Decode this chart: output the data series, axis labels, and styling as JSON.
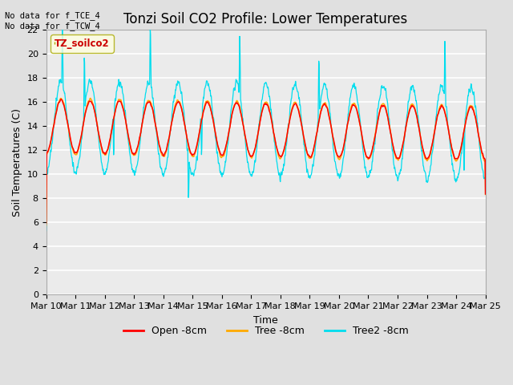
{
  "title": "Tonzi Soil CO2 Profile: Lower Temperatures",
  "xlabel": "Time",
  "ylabel": "Soil Temperatures (C)",
  "annotation": "No data for f_TCE_4\nNo data for f_TCW_4",
  "legend_label": "TZ_soilco2",
  "series_labels": [
    "Open -8cm",
    "Tree -8cm",
    "Tree2 -8cm"
  ],
  "series_colors": [
    "#ff0000",
    "#ffaa00",
    "#00ddee"
  ],
  "ylim": [
    0,
    22
  ],
  "yticks": [
    0,
    2,
    4,
    6,
    8,
    10,
    12,
    14,
    16,
    18,
    20,
    22
  ],
  "xtick_labels": [
    "Mar 10",
    "Mar 11",
    "Mar 12",
    "Mar 13",
    "Mar 14",
    "Mar 15",
    "Mar 16",
    "Mar 17",
    "Mar 18",
    "Mar 19",
    "Mar 20",
    "Mar 21",
    "Mar 22",
    "Mar 23",
    "Mar 24",
    "Mar 25"
  ],
  "background_color": "#e0e0e0",
  "plot_bg_color": "#ebebeb",
  "title_fontsize": 12,
  "axis_fontsize": 9,
  "tick_fontsize": 8
}
